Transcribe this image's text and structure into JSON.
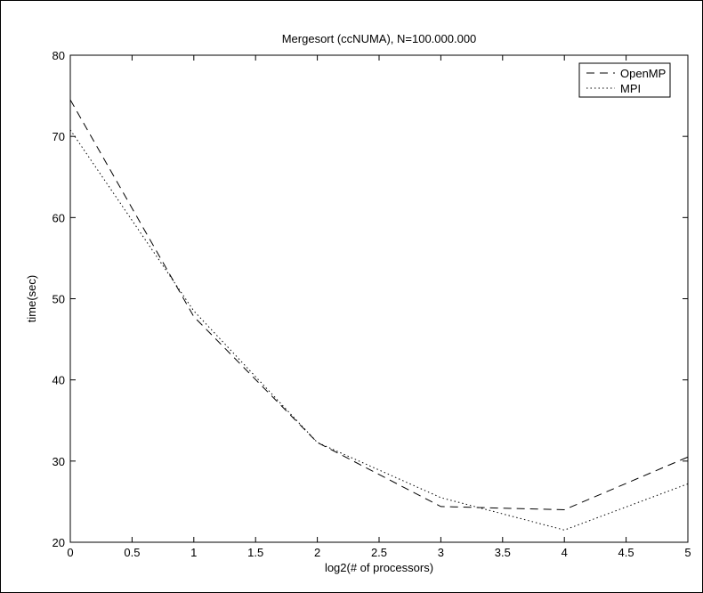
{
  "chart_data": {
    "type": "line",
    "title": "Mergesort (ccNUMA), N=100.000.000",
    "xlabel": "log2(# of processors)",
    "ylabel": "time(sec)",
    "xlim": [
      0,
      5
    ],
    "ylim": [
      20,
      80
    ],
    "xticks": [
      0,
      0.5,
      1,
      1.5,
      2,
      2.5,
      3,
      3.5,
      4,
      4.5,
      5
    ],
    "xtick_labels": [
      "0",
      "0.5",
      "1",
      "1.5",
      "2",
      "2.5",
      "3",
      "3.5",
      "4",
      "4.5",
      "5"
    ],
    "yticks": [
      20,
      30,
      40,
      50,
      60,
      70,
      80
    ],
    "ytick_labels": [
      "20",
      "30",
      "40",
      "50",
      "60",
      "70",
      "80"
    ],
    "grid": false,
    "legend_position": "top-right",
    "x": [
      0,
      1,
      2,
      3,
      4,
      5
    ],
    "series": [
      {
        "name": "OpenMP",
        "style": "dashed",
        "color": "#000000",
        "values": [
          74.5,
          47.8,
          32.3,
          24.4,
          24.0,
          30.5
        ]
      },
      {
        "name": "MPI",
        "style": "dotted",
        "color": "#000000",
        "values": [
          70.8,
          48.5,
          32.3,
          25.5,
          21.5,
          27.2
        ]
      }
    ]
  }
}
